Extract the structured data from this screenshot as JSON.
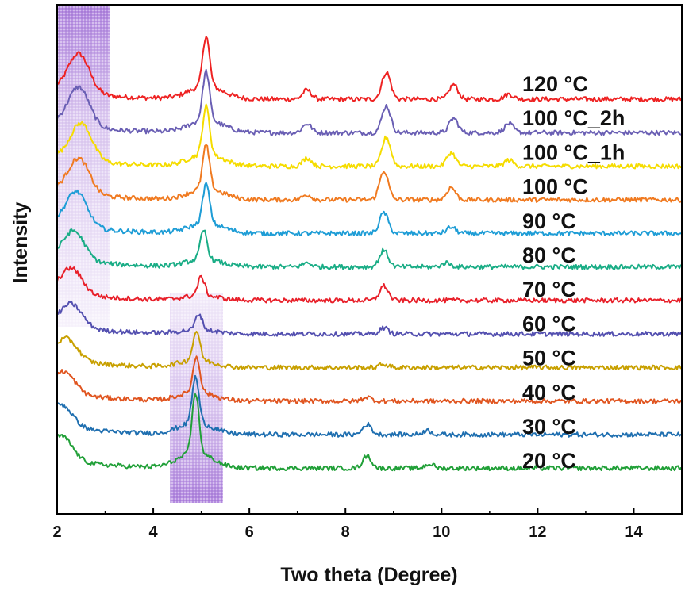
{
  "chart_data": {
    "type": "line",
    "title": "",
    "xlabel": "Two theta (Degree)",
    "ylabel": "Intensity",
    "xlim": [
      2,
      15
    ],
    "x_ticks": [
      2,
      4,
      6,
      8,
      10,
      12,
      14
    ],
    "y_ticks_shown": false,
    "grid": false,
    "legend": "inline labels at right of each trace",
    "highlight_regions": [
      {
        "x_range": [
          2.0,
          3.1
        ],
        "color": "#9b6fd0",
        "note": "low-angle shaded band"
      },
      {
        "x_range": [
          4.35,
          5.45
        ],
        "color": "#9b6fd0",
        "note": "shaded band around 4.9"
      }
    ],
    "series": [
      {
        "name": "120 °C",
        "color": "#ee2222",
        "peaks": [
          {
            "x": 2.45,
            "h": 0.95
          },
          {
            "x": 5.1,
            "h": 1.22
          },
          {
            "x": 7.2,
            "h": 0.22
          },
          {
            "x": 8.85,
            "h": 0.65
          },
          {
            "x": 10.25,
            "h": 0.35
          },
          {
            "x": 11.4,
            "h": 0.12
          }
        ]
      },
      {
        "name": "100 °C_2h",
        "color": "#6a5fb4",
        "peaks": [
          {
            "x": 2.45,
            "h": 0.95
          },
          {
            "x": 5.1,
            "h": 1.18
          },
          {
            "x": 7.2,
            "h": 0.22
          },
          {
            "x": 8.85,
            "h": 0.65
          },
          {
            "x": 10.25,
            "h": 0.35
          },
          {
            "x": 11.4,
            "h": 0.22
          }
        ]
      },
      {
        "name": "100 °C_1h",
        "color": "#f5dc00",
        "peaks": [
          {
            "x": 2.5,
            "h": 0.9
          },
          {
            "x": 5.1,
            "h": 1.15
          },
          {
            "x": 7.2,
            "h": 0.2
          },
          {
            "x": 8.85,
            "h": 0.7
          },
          {
            "x": 10.2,
            "h": 0.33
          },
          {
            "x": 11.4,
            "h": 0.15
          }
        ]
      },
      {
        "name": "100 °C",
        "color": "#f07a20",
        "peaks": [
          {
            "x": 2.45,
            "h": 0.85
          },
          {
            "x": 5.1,
            "h": 1.05
          },
          {
            "x": 7.2,
            "h": 0.12
          },
          {
            "x": 8.8,
            "h": 0.7
          },
          {
            "x": 10.2,
            "h": 0.3
          }
        ]
      },
      {
        "name": "90 °C",
        "color": "#1e9dd6",
        "peaks": [
          {
            "x": 2.4,
            "h": 0.85
          },
          {
            "x": 5.1,
            "h": 0.95
          },
          {
            "x": 8.8,
            "h": 0.5
          },
          {
            "x": 10.2,
            "h": 0.15
          }
        ]
      },
      {
        "name": "80 °C",
        "color": "#1aad86",
        "peaks": [
          {
            "x": 2.35,
            "h": 0.7
          },
          {
            "x": 5.05,
            "h": 0.7
          },
          {
            "x": 7.2,
            "h": 0.1
          },
          {
            "x": 8.8,
            "h": 0.4
          },
          {
            "x": 10.1,
            "h": 0.1
          }
        ]
      },
      {
        "name": "70 °C",
        "color": "#e8202a",
        "peaks": [
          {
            "x": 2.3,
            "h": 0.6
          },
          {
            "x": 5.0,
            "h": 0.45
          },
          {
            "x": 8.8,
            "h": 0.35
          }
        ]
      },
      {
        "name": "60 °C",
        "color": "#5450b0",
        "peaks": [
          {
            "x": 2.3,
            "h": 0.55
          },
          {
            "x": 4.95,
            "h": 0.38
          },
          {
            "x": 8.8,
            "h": 0.15
          }
        ]
      },
      {
        "name": "50 °C",
        "color": "#c8a000",
        "peaks": [
          {
            "x": 2.2,
            "h": 0.5
          },
          {
            "x": 4.9,
            "h": 0.7
          },
          {
            "x": 8.8,
            "h": 0.08
          }
        ]
      },
      {
        "name": "40 °C",
        "color": "#e05520",
        "peaks": [
          {
            "x": 2.15,
            "h": 0.5
          },
          {
            "x": 4.9,
            "h": 0.85
          },
          {
            "x": 8.45,
            "h": 0.1
          }
        ]
      },
      {
        "name": "30 °C",
        "color": "#1f6fb0",
        "peaks": [
          {
            "x": 2.1,
            "h": 0.5
          },
          {
            "x": 4.88,
            "h": 1.1
          },
          {
            "x": 8.45,
            "h": 0.25
          },
          {
            "x": 9.7,
            "h": 0.1
          }
        ]
      },
      {
        "name": "20 °C",
        "color": "#21a038",
        "peaks": [
          {
            "x": 2.1,
            "h": 0.55
          },
          {
            "x": 4.88,
            "h": 1.45
          },
          {
            "x": 8.45,
            "h": 0.3
          },
          {
            "x": 9.75,
            "h": 0.1
          }
        ]
      }
    ]
  }
}
